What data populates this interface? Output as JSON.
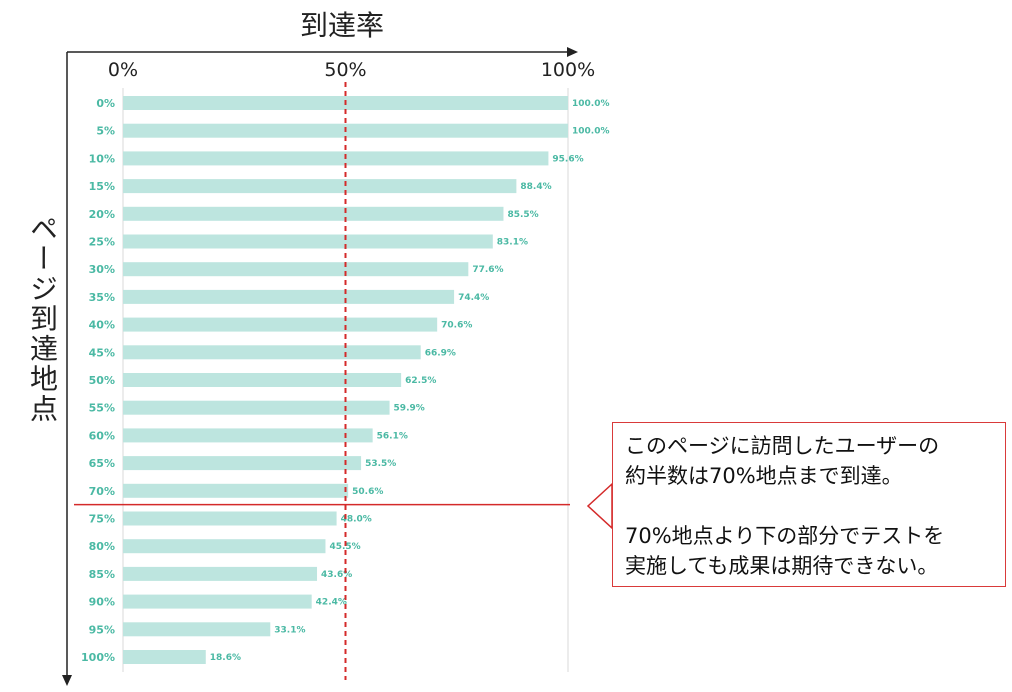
{
  "chart_data": {
    "type": "bar",
    "orientation": "horizontal",
    "xlabel": "到達率",
    "ylabel": "ページ到達地点",
    "xticks": [
      "0%",
      "50%",
      "100%"
    ],
    "xlim": [
      0,
      100
    ],
    "reference_lines": {
      "vertical_at": 50,
      "horizontal_after": "70%"
    },
    "categories": [
      "0%",
      "5%",
      "10%",
      "15%",
      "20%",
      "25%",
      "30%",
      "35%",
      "40%",
      "45%",
      "50%",
      "55%",
      "60%",
      "65%",
      "70%",
      "75%",
      "80%",
      "85%",
      "90%",
      "95%",
      "100%"
    ],
    "values": [
      100.0,
      100.0,
      95.6,
      88.4,
      85.5,
      83.1,
      77.6,
      74.4,
      70.6,
      66.9,
      62.5,
      59.9,
      56.1,
      53.5,
      50.6,
      48.0,
      45.5,
      43.6,
      42.4,
      33.1,
      18.6
    ],
    "value_labels": [
      "100.0%",
      "100.0%",
      "95.6%",
      "88.4%",
      "85.5%",
      "83.1%",
      "77.6%",
      "74.4%",
      "70.6%",
      "66.9%",
      "62.5%",
      "59.9%",
      "56.1%",
      "53.5%",
      "50.6%",
      "48.0%",
      "45.5%",
      "43.6%",
      "42.4%",
      "33.1%",
      "18.6%"
    ],
    "colors": {
      "bar": "#bde5df",
      "label": "#4bb9a4",
      "ref_line": "#d42a2a",
      "grid": "#d9d9d9",
      "axis": "#222222"
    }
  },
  "callout": {
    "line1": "このページに訪問したユーザーの",
    "line2": "約半数は70%地点まで到達。",
    "line3": "70%地点より下の部分でテストを",
    "line4": "実施しても成果は期待できない。"
  }
}
